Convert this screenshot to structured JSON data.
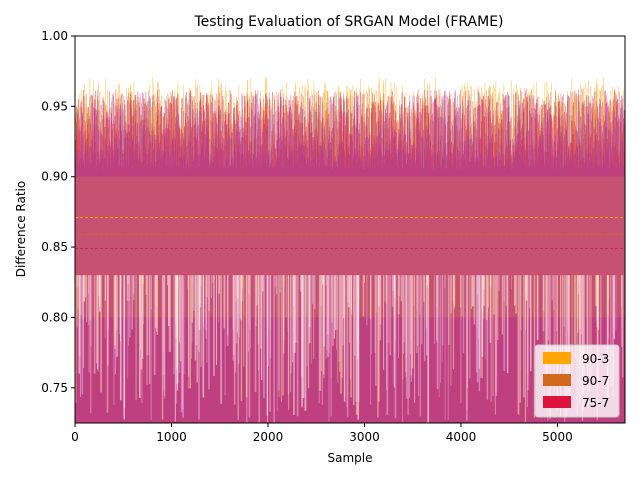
{
  "chart_data": {
    "type": "bar",
    "title": "Testing Evaluation of SRGAN Model (FRAME)",
    "xlabel": "Sample",
    "ylabel": "Difference Ratio",
    "xlim": [
      0,
      5700
    ],
    "ylim": [
      0.725,
      1.0
    ],
    "xticks": [
      0,
      1000,
      2000,
      3000,
      4000,
      5000
    ],
    "yticks": [
      0.75,
      0.8,
      0.85,
      0.9,
      0.95,
      1.0
    ],
    "xtick_labels": [
      "0",
      "1000",
      "2000",
      "3000",
      "4000",
      "5000"
    ],
    "ytick_labels": [
      "0.75",
      "0.80",
      "0.85",
      "0.90",
      "0.95",
      "1.00"
    ],
    "legend_position": "lower-right",
    "grid": false,
    "series": [
      {
        "name": "90-3",
        "color": "#ffa500",
        "mean": 0.871,
        "typical_range": [
          0.73,
          0.967
        ]
      },
      {
        "name": "90-7",
        "color": "#d2691e",
        "mean": 0.859,
        "typical_range": [
          0.73,
          0.96
        ]
      },
      {
        "name": "75-7",
        "color": "#dc143c",
        "mean": 0.849,
        "typical_range": [
          0.73,
          0.958
        ]
      }
    ],
    "overlay_color": "#9932cc"
  }
}
